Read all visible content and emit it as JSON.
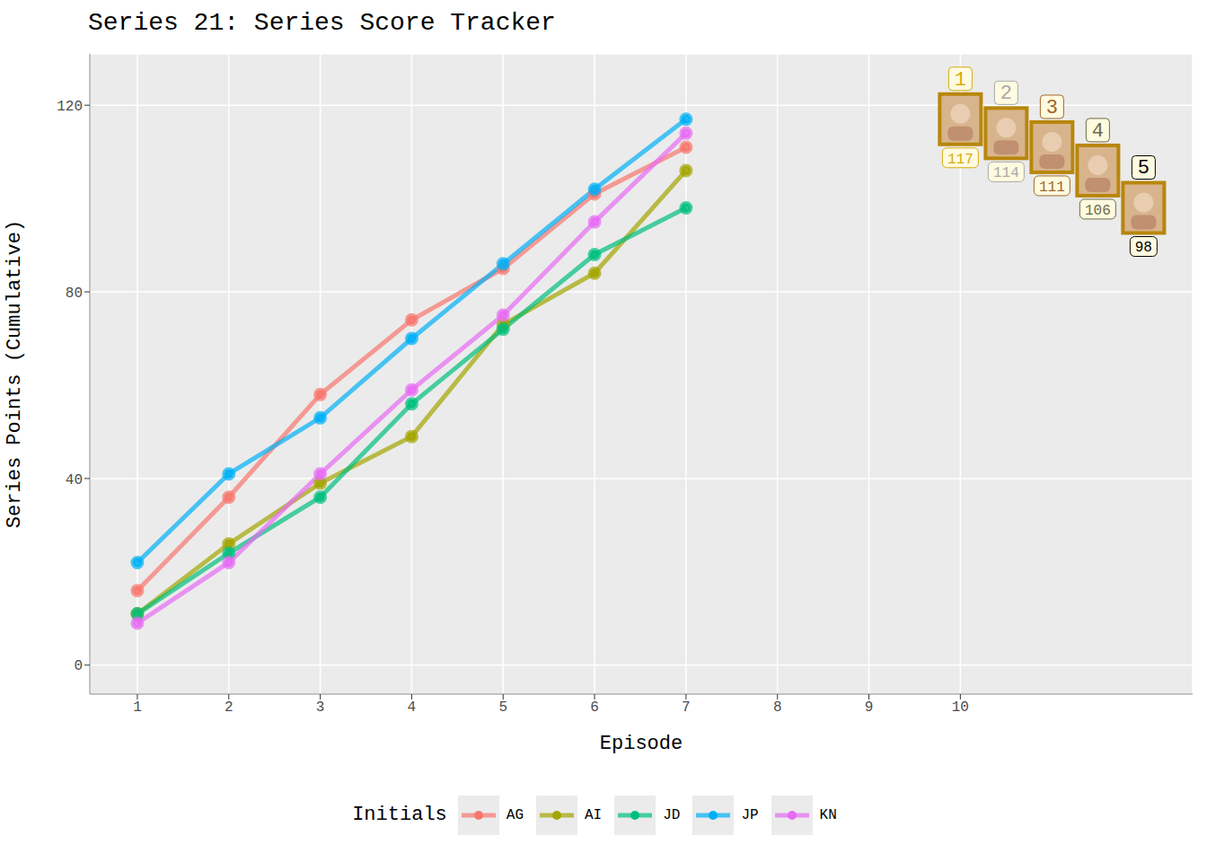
{
  "chart_data": {
    "type": "line",
    "title": "Series 21: Series Score Tracker",
    "x_label": "Episode",
    "y_label": "Series Points (Cumulative)",
    "x": [
      1,
      2,
      3,
      4,
      5,
      6,
      7
    ],
    "series": [
      {
        "name": "AG",
        "color": "#F8766D",
        "values": [
          16,
          36,
          58,
          74,
          85,
          101,
          111
        ]
      },
      {
        "name": "AI",
        "color": "#A3A500",
        "values": [
          11,
          26,
          39,
          49,
          73,
          84,
          106
        ]
      },
      {
        "name": "JD",
        "color": "#00BF7D",
        "values": [
          11,
          24,
          36,
          56,
          72,
          88,
          98
        ]
      },
      {
        "name": "JP",
        "color": "#00B0F6",
        "values": [
          22,
          41,
          53,
          70,
          86,
          102,
          117
        ]
      },
      {
        "name": "KN",
        "color": "#E76BF3",
        "values": [
          9,
          22,
          41,
          59,
          75,
          95,
          114
        ]
      }
    ],
    "xlim": [
      0.48,
      12.54
    ],
    "xticks": [
      1,
      2,
      3,
      4,
      5,
      6,
      7,
      8,
      9,
      10
    ],
    "ylim": [
      -6.2,
      131
    ],
    "yticks": [
      0,
      40,
      80,
      120
    ],
    "grid": true,
    "legend": "bottom",
    "legend_title": "Initials",
    "marker": "circle",
    "ranking": [
      {
        "rank": 1,
        "score": 117,
        "color": "#d4ac0d"
      },
      {
        "rank": 2,
        "score": 114,
        "color": "#a8a8a8"
      },
      {
        "rank": 3,
        "score": 111,
        "color": "#a0652a"
      },
      {
        "rank": 4,
        "score": 106,
        "color": "#6b6b4a"
      },
      {
        "rank": 5,
        "score": 98,
        "color": "#000000"
      }
    ]
  }
}
